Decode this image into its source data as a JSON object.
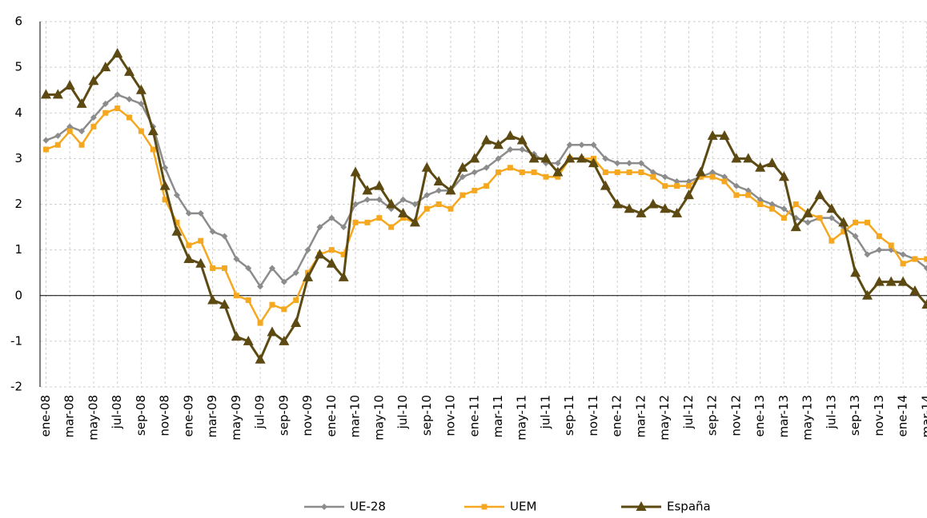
{
  "chart_data": {
    "type": "line",
    "categories": [
      "ene-08",
      null,
      "mar-08",
      null,
      "may-08",
      null,
      "jul-08",
      null,
      "sep-08",
      null,
      "nov-08",
      null,
      "ene-09",
      null,
      "mar-09",
      null,
      "may-09",
      null,
      "jul-09",
      null,
      "sep-09",
      null,
      "nov-09",
      null,
      "ene-10",
      null,
      "mar-10",
      null,
      "may-10",
      null,
      "jul-10",
      null,
      "sep-10",
      null,
      "nov-10",
      null,
      "ene-11",
      null,
      "mar-11",
      null,
      "may-11",
      null,
      "jul-11",
      null,
      "sep-11",
      null,
      "nov-11",
      null,
      "ene-12",
      null,
      "mar-12",
      null,
      "may-12",
      null,
      "jul-12",
      null,
      "sep-12",
      null,
      "nov-12",
      null,
      "ene-13",
      null,
      "mar-13",
      null,
      "may-13",
      null,
      "jul-13",
      null,
      "sep-13",
      null,
      "nov-13",
      null,
      "ene-14",
      null,
      "mar-14"
    ],
    "series": [
      {
        "name": "UE-28",
        "color": "#8c8c8c",
        "marker": "diamond",
        "values": [
          3.4,
          3.5,
          3.7,
          3.6,
          3.9,
          4.2,
          4.4,
          4.3,
          4.2,
          3.7,
          2.8,
          2.2,
          1.8,
          1.8,
          1.4,
          1.3,
          0.8,
          0.6,
          0.2,
          0.6,
          0.3,
          0.5,
          1.0,
          1.5,
          1.7,
          1.5,
          2.0,
          2.1,
          2.1,
          1.9,
          2.1,
          2.0,
          2.2,
          2.3,
          2.3,
          2.6,
          2.7,
          2.8,
          3.0,
          3.2,
          3.2,
          3.1,
          2.9,
          2.9,
          3.3,
          3.3,
          3.3,
          3.0,
          2.9,
          2.9,
          2.9,
          2.7,
          2.6,
          2.5,
          2.5,
          2.6,
          2.7,
          2.6,
          2.4,
          2.3,
          2.1,
          2.0,
          1.9,
          1.7,
          1.6,
          1.7,
          1.7,
          1.5,
          1.3,
          0.9,
          1.0,
          1.0,
          0.9,
          0.8,
          0.6
        ]
      },
      {
        "name": "UEM",
        "color": "#f5a81f",
        "marker": "square",
        "values": [
          3.2,
          3.3,
          3.6,
          3.3,
          3.7,
          4.0,
          4.1,
          3.9,
          3.6,
          3.2,
          2.1,
          1.6,
          1.1,
          1.2,
          0.6,
          0.6,
          0.0,
          -0.1,
          -0.6,
          -0.2,
          -0.3,
          -0.1,
          0.5,
          0.9,
          1.0,
          0.9,
          1.6,
          1.6,
          1.7,
          1.5,
          1.7,
          1.6,
          1.9,
          2.0,
          1.9,
          2.2,
          2.3,
          2.4,
          2.7,
          2.8,
          2.7,
          2.7,
          2.6,
          2.6,
          3.0,
          3.0,
          3.0,
          2.7,
          2.7,
          2.7,
          2.7,
          2.6,
          2.4,
          2.4,
          2.4,
          2.6,
          2.6,
          2.5,
          2.2,
          2.2,
          2.0,
          1.9,
          1.7,
          2.0,
          1.8,
          1.7,
          1.2,
          1.4,
          1.6,
          1.6,
          1.3,
          1.1,
          0.7,
          0.8,
          0.8
        ]
      },
      {
        "name": "España",
        "color": "#5c4a12",
        "marker": "triangle",
        "values": [
          4.4,
          4.4,
          4.6,
          4.2,
          4.7,
          5.0,
          5.3,
          4.9,
          4.5,
          3.6,
          2.4,
          1.4,
          0.8,
          0.7,
          -0.1,
          -0.2,
          -0.9,
          -1.0,
          -1.4,
          -0.8,
          -1.0,
          -0.6,
          0.4,
          0.9,
          0.7,
          0.4,
          2.7,
          2.3,
          2.4,
          2.0,
          1.8,
          1.6,
          2.8,
          2.5,
          2.3,
          2.8,
          3.0,
          3.4,
          3.3,
          3.5,
          3.4,
          3.0,
          3.0,
          2.7,
          3.0,
          3.0,
          2.9,
          2.4,
          2.0,
          1.9,
          1.8,
          2.0,
          1.9,
          1.8,
          2.2,
          2.7,
          3.5,
          3.5,
          3.0,
          3.0,
          2.8,
          2.9,
          2.6,
          1.5,
          1.8,
          2.2,
          1.9,
          1.6,
          0.5,
          0.0,
          0.3,
          0.3,
          0.3,
          0.1,
          -0.2
        ]
      }
    ],
    "ylim": [
      -2,
      6
    ],
    "yticks": [
      -2,
      -1,
      0,
      1,
      2,
      3,
      4,
      5,
      6
    ],
    "grid": true,
    "legend": "bottom"
  }
}
